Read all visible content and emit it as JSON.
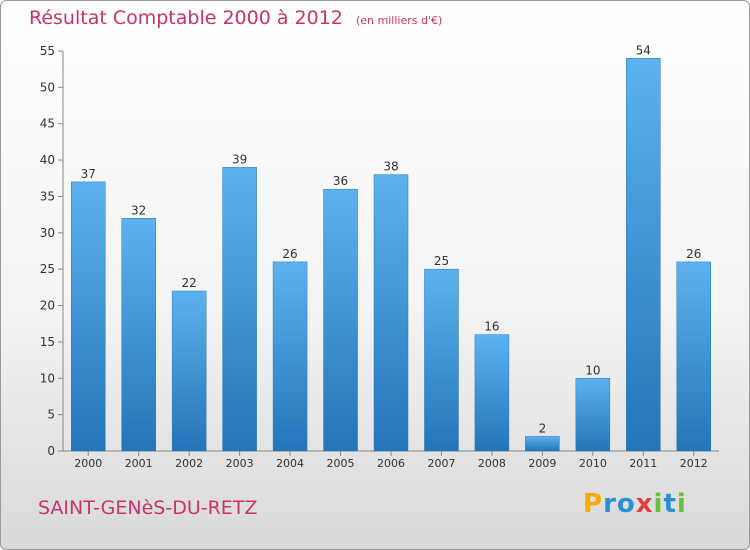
{
  "header": {
    "title": "Résultat Comptable 2000 à 2012",
    "subtitle": "(en milliers d'€)"
  },
  "footer": {
    "commune": "SAINT-GENèS-DU-RETZ",
    "logo_text": "Proxiti",
    "logo_letters": [
      "P",
      "r",
      "o",
      "x",
      "i",
      "t",
      "i"
    ],
    "logo_colors": [
      "#f2a900",
      "#2b8fd6",
      "#2b8fd6",
      "#e0403f",
      "#6cbf3c",
      "#2b8fd6",
      "#6cbf3c"
    ]
  },
  "chart_data": {
    "type": "bar",
    "categories": [
      "2000",
      "2001",
      "2002",
      "2003",
      "2004",
      "2005",
      "2006",
      "2007",
      "2008",
      "2009",
      "2010",
      "2011",
      "2012"
    ],
    "values": [
      37,
      32,
      22,
      39,
      26,
      36,
      38,
      25,
      16,
      2,
      10,
      54,
      26
    ],
    "title": "Résultat Comptable 2000 à 2012",
    "ylim": [
      0,
      55
    ],
    "yticks": [
      0,
      5,
      10,
      15,
      20,
      25,
      30,
      35,
      40,
      45,
      50,
      55
    ],
    "grid": false,
    "data_labels": true,
    "bar_color": "#3f95d6"
  }
}
